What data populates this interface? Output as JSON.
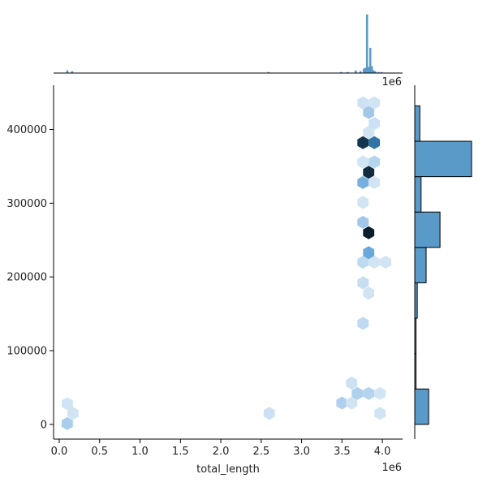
{
  "chart_data": {
    "type": "hexbin-joint",
    "xlabel": "total_length",
    "ylabel": "",
    "x_offset_label": "1e6",
    "marg_x_offset_label": "1e6",
    "xlim": [
      -0.07,
      4.25
    ],
    "ylim": [
      -20000,
      460000
    ],
    "x_ticks": [
      0.0,
      0.5,
      1.0,
      1.5,
      2.0,
      2.5,
      3.0,
      3.5,
      4.0
    ],
    "x_tick_labels": [
      "0.0",
      "0.5",
      "1.0",
      "1.5",
      "2.0",
      "2.5",
      "3.0",
      "3.5",
      "4.0"
    ],
    "y_ticks": [
      0,
      100000,
      200000,
      300000,
      400000
    ],
    "y_tick_labels": [
      "0",
      "100000",
      "200000",
      "300000",
      "400000"
    ],
    "colors": {
      "low": "#e8f1fa",
      "mid": "#3e8fd0",
      "high": "#0b1e2d",
      "hist_fill": "#5a9ac8",
      "hist_stroke": "#000000"
    },
    "hexbins": [
      {
        "x": 0.1,
        "y": 28000,
        "level": 0.08
      },
      {
        "x": 0.17,
        "y": 15000,
        "level": 0.08
      },
      {
        "x": 0.1,
        "y": 1000,
        "level": 0.22
      },
      {
        "x": 2.6,
        "y": 15000,
        "level": 0.1
      },
      {
        "x": 3.5,
        "y": 29000,
        "level": 0.2
      },
      {
        "x": 3.62,
        "y": 29000,
        "level": 0.08
      },
      {
        "x": 3.62,
        "y": 56000,
        "level": 0.1
      },
      {
        "x": 3.69,
        "y": 42000,
        "level": 0.2
      },
      {
        "x": 3.83,
        "y": 42000,
        "level": 0.18
      },
      {
        "x": 3.97,
        "y": 42000,
        "level": 0.08
      },
      {
        "x": 3.97,
        "y": 15000,
        "level": 0.08
      },
      {
        "x": 3.76,
        "y": 137000,
        "level": 0.15
      },
      {
        "x": 3.83,
        "y": 178000,
        "level": 0.08
      },
      {
        "x": 3.76,
        "y": 192000,
        "level": 0.12
      },
      {
        "x": 3.76,
        "y": 220000,
        "level": 0.15
      },
      {
        "x": 3.9,
        "y": 220000,
        "level": 0.08
      },
      {
        "x": 4.04,
        "y": 220000,
        "level": 0.08
      },
      {
        "x": 3.83,
        "y": 233000,
        "level": 0.45
      },
      {
        "x": 3.83,
        "y": 260000,
        "level": 1.0
      },
      {
        "x": 3.76,
        "y": 274000,
        "level": 0.25
      },
      {
        "x": 3.76,
        "y": 301000,
        "level": 0.08
      },
      {
        "x": 3.76,
        "y": 328000,
        "level": 0.4
      },
      {
        "x": 3.9,
        "y": 328000,
        "level": 0.08
      },
      {
        "x": 3.83,
        "y": 342000,
        "level": 0.95
      },
      {
        "x": 3.9,
        "y": 356000,
        "level": 0.18
      },
      {
        "x": 3.76,
        "y": 356000,
        "level": 0.08
      },
      {
        "x": 3.76,
        "y": 382000,
        "level": 0.92
      },
      {
        "x": 3.9,
        "y": 382000,
        "level": 0.7
      },
      {
        "x": 3.83,
        "y": 396000,
        "level": 0.08
      },
      {
        "x": 3.9,
        "y": 408000,
        "level": 0.1
      },
      {
        "x": 3.83,
        "y": 423000,
        "level": 0.25
      },
      {
        "x": 3.76,
        "y": 436000,
        "level": 0.1
      },
      {
        "x": 3.9,
        "y": 436000,
        "level": 0.08
      }
    ],
    "marginal_x": {
      "bins": [
        {
          "x0": 0.09,
          "x1": 0.11,
          "count": 3
        },
        {
          "x0": 0.15,
          "x1": 0.17,
          "count": 2
        },
        {
          "x0": 2.58,
          "x1": 2.6,
          "count": 1
        },
        {
          "x0": 3.48,
          "x1": 3.5,
          "count": 1
        },
        {
          "x0": 3.56,
          "x1": 3.58,
          "count": 1
        },
        {
          "x0": 3.66,
          "x1": 3.68,
          "count": 3
        },
        {
          "x0": 3.72,
          "x1": 3.74,
          "count": 2
        },
        {
          "x0": 3.76,
          "x1": 3.78,
          "count": 5
        },
        {
          "x0": 3.78,
          "x1": 3.8,
          "count": 6
        },
        {
          "x0": 3.8,
          "x1": 3.82,
          "count": 70
        },
        {
          "x0": 3.82,
          "x1": 3.84,
          "count": 7
        },
        {
          "x0": 3.84,
          "x1": 3.86,
          "count": 30
        },
        {
          "x0": 3.86,
          "x1": 3.88,
          "count": 8
        },
        {
          "x0": 3.88,
          "x1": 3.9,
          "count": 3
        },
        {
          "x0": 3.9,
          "x1": 3.92,
          "count": 2
        },
        {
          "x0": 3.94,
          "x1": 3.96,
          "count": 1
        },
        {
          "x0": 3.98,
          "x1": 4.0,
          "count": 1
        }
      ]
    },
    "marginal_y": {
      "bins": [
        {
          "y0": 0,
          "y1": 48000,
          "count": 11
        },
        {
          "y0": 48000,
          "y1": 96000,
          "count": 1
        },
        {
          "y0": 96000,
          "y1": 144000,
          "count": 1
        },
        {
          "y0": 144000,
          "y1": 192000,
          "count": 2
        },
        {
          "y0": 192000,
          "y1": 240000,
          "count": 9
        },
        {
          "y0": 240000,
          "y1": 288000,
          "count": 20
        },
        {
          "y0": 288000,
          "y1": 336000,
          "count": 5
        },
        {
          "y0": 336000,
          "y1": 384000,
          "count": 45
        },
        {
          "y0": 384000,
          "y1": 432000,
          "count": 4
        }
      ]
    }
  }
}
